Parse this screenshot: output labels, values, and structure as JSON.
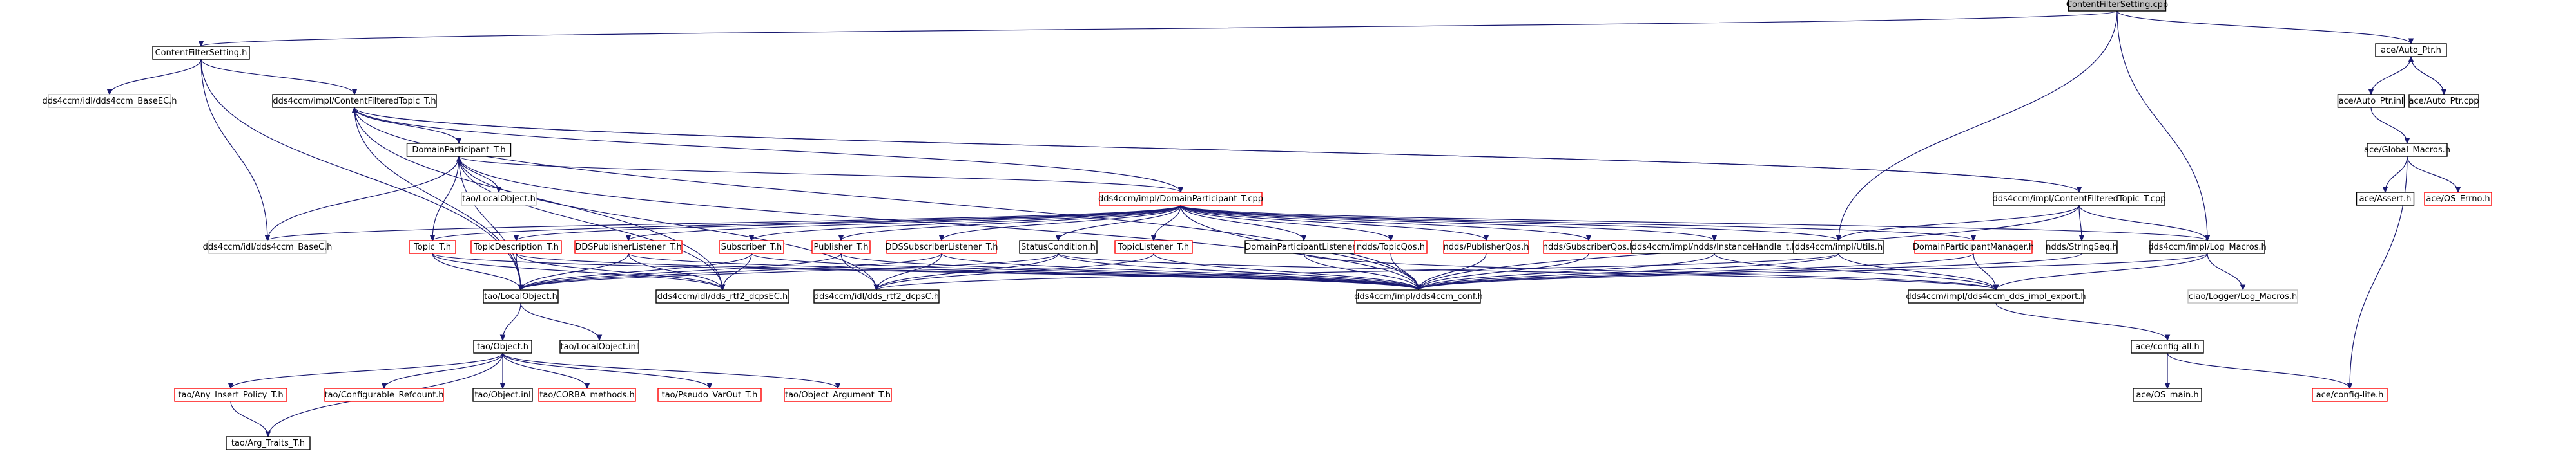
{
  "colors": {
    "edge": "#191970",
    "text": "#000000",
    "border_default": "#000000",
    "border_external": "#bfbfbf",
    "border_incomplete": "#ff0000",
    "root_fill": "#bfbfbf",
    "fill": "#ffffff"
  },
  "nodes": [
    {
      "id": "root",
      "label": "ContentFilterSetting.cpp",
      "kind": "root"
    },
    {
      "id": "cfs_h",
      "label": "ContentFilterSetting.h",
      "kind": "normal"
    },
    {
      "id": "autoptr_h",
      "label": "ace/Auto_Ptr.h",
      "kind": "normal"
    },
    {
      "id": "baseec_h",
      "label": "dds4ccm/idl/dds4ccm_BaseEC.h",
      "kind": "external"
    },
    {
      "id": "cft_h",
      "label": "dds4ccm/impl/ContentFilteredTopic_T.h",
      "kind": "normal"
    },
    {
      "id": "autoptr_inl",
      "label": "ace/Auto_Ptr.inl",
      "kind": "normal"
    },
    {
      "id": "autoptr_cpp",
      "label": "ace/Auto_Ptr.cpp",
      "kind": "normal"
    },
    {
      "id": "dp_h",
      "label": "DomainParticipant_T.h",
      "kind": "normal"
    },
    {
      "id": "global_macros",
      "label": "ace/Global_Macros.h",
      "kind": "normal"
    },
    {
      "id": "localobject_h_ext",
      "label": "tao/LocalObject.h",
      "kind": "external"
    },
    {
      "id": "dp_cpp",
      "label": "dds4ccm/impl/DomainParticipant_T.cpp",
      "kind": "incomplete"
    },
    {
      "id": "cft_cpp",
      "label": "dds4ccm/impl/ContentFilteredTopic_T.cpp",
      "kind": "normal"
    },
    {
      "id": "assert_h",
      "label": "ace/Assert.h",
      "kind": "normal"
    },
    {
      "id": "os_errno",
      "label": "ace/OS_Errno.h",
      "kind": "incomplete"
    },
    {
      "id": "baseC_h",
      "label": "dds4ccm/idl/dds4ccm_BaseC.h",
      "kind": "external"
    },
    {
      "id": "topic_t",
      "label": "Topic_T.h",
      "kind": "incomplete"
    },
    {
      "id": "topicdesc_t",
      "label": "TopicDescription_T.h",
      "kind": "incomplete"
    },
    {
      "id": "ddspublistener",
      "label": "DDSPublisherListener_T.h",
      "kind": "incomplete"
    },
    {
      "id": "subscriber_t",
      "label": "Subscriber_T.h",
      "kind": "incomplete"
    },
    {
      "id": "publisher_t",
      "label": "Publisher_T.h",
      "kind": "incomplete"
    },
    {
      "id": "ddssublistener",
      "label": "DDSSubscriberListener_T.h",
      "kind": "incomplete"
    },
    {
      "id": "statuscond",
      "label": "StatusCondition.h",
      "kind": "normal"
    },
    {
      "id": "topiclistener",
      "label": "TopicListener_T.h",
      "kind": "incomplete"
    },
    {
      "id": "dplistener",
      "label": "DomainParticipantListener.h",
      "kind": "normal"
    },
    {
      "id": "topicqos",
      "label": "ndds/TopicQos.h",
      "kind": "incomplete"
    },
    {
      "id": "pubqos",
      "label": "ndds/PublisherQos.h",
      "kind": "incomplete"
    },
    {
      "id": "subqos",
      "label": "ndds/SubscriberQos.h",
      "kind": "incomplete"
    },
    {
      "id": "instancehandle",
      "label": "dds4ccm/impl/ndds/InstanceHandle_t.h",
      "kind": "normal"
    },
    {
      "id": "utils_h",
      "label": "dds4ccm/impl/Utils.h",
      "kind": "normal"
    },
    {
      "id": "dpmanager",
      "label": "DomainParticipantManager.h",
      "kind": "incomplete"
    },
    {
      "id": "stringseq",
      "label": "ndds/StringSeq.h",
      "kind": "normal"
    },
    {
      "id": "logmacros",
      "label": "dds4ccm/impl/Log_Macros.h",
      "kind": "normal"
    },
    {
      "id": "localobject_h",
      "label": "tao/LocalObject.h",
      "kind": "normal"
    },
    {
      "id": "dcpsec_h",
      "label": "dds4ccm/idl/dds_rtf2_dcpsEC.h",
      "kind": "normal"
    },
    {
      "id": "dcpsc_h",
      "label": "dds4ccm/idl/dds_rtf2_dcpsC.h",
      "kind": "normal"
    },
    {
      "id": "conf_h",
      "label": "dds4ccm/impl/dds4ccm_conf.h",
      "kind": "normal"
    },
    {
      "id": "impl_export",
      "label": "dds4ccm/impl/dds4ccm_dds_impl_export.h",
      "kind": "normal"
    },
    {
      "id": "ciao_logger",
      "label": "ciao/Logger/Log_Macros.h",
      "kind": "external"
    },
    {
      "id": "object_h",
      "label": "tao/Object.h",
      "kind": "normal"
    },
    {
      "id": "localobject_inl",
      "label": "tao/LocalObject.inl",
      "kind": "normal"
    },
    {
      "id": "config_all",
      "label": "ace/config-all.h",
      "kind": "normal"
    },
    {
      "id": "any_insert",
      "label": "tao/Any_Insert_Policy_T.h",
      "kind": "incomplete"
    },
    {
      "id": "configurable",
      "label": "tao/Configurable_Refcount.h",
      "kind": "incomplete"
    },
    {
      "id": "object_inl",
      "label": "tao/Object.inl",
      "kind": "normal"
    },
    {
      "id": "corba_methods",
      "label": "tao/CORBA_methods.h",
      "kind": "incomplete"
    },
    {
      "id": "pseudo_varout",
      "label": "tao/Pseudo_VarOut_T.h",
      "kind": "incomplete"
    },
    {
      "id": "object_argument",
      "label": "tao/Object_Argument_T.h",
      "kind": "incomplete"
    },
    {
      "id": "os_main",
      "label": "ace/OS_main.h",
      "kind": "normal"
    },
    {
      "id": "config_lite",
      "label": "ace/config-lite.h",
      "kind": "incomplete"
    },
    {
      "id": "arg_traits",
      "label": "tao/Arg_Traits_T.h",
      "kind": "normal"
    }
  ],
  "edges": [
    [
      "root",
      "cfs_h"
    ],
    [
      "root",
      "autoptr_h"
    ],
    [
      "root",
      "utils_h"
    ],
    [
      "root",
      "logmacros"
    ],
    [
      "cfs_h",
      "baseec_h"
    ],
    [
      "cfs_h",
      "cft_h"
    ],
    [
      "cfs_h",
      "baseC_h"
    ],
    [
      "cfs_h",
      "localobject_h"
    ],
    [
      "autoptr_h",
      "autoptr_inl"
    ],
    [
      "autoptr_h",
      "autoptr_cpp"
    ],
    [
      "autoptr_cpp",
      "autoptr_h"
    ],
    [
      "autoptr_inl",
      "global_macros"
    ],
    [
      "global_macros",
      "assert_h"
    ],
    [
      "global_macros",
      "os_errno"
    ],
    [
      "global_macros",
      "config_lite"
    ],
    [
      "cft_h",
      "dp_h"
    ],
    [
      "cft_h",
      "cft_cpp"
    ],
    [
      "cft_cpp",
      "cft_h"
    ],
    [
      "cft_h",
      "localobject_h"
    ],
    [
      "cft_h",
      "dcpsec_h"
    ],
    [
      "cft_h",
      "conf_h"
    ],
    [
      "dp_h",
      "localobject_h_ext"
    ],
    [
      "dp_h",
      "dp_cpp"
    ],
    [
      "dp_h",
      "baseC_h"
    ],
    [
      "dp_h",
      "localobject_h"
    ],
    [
      "dp_h",
      "dcpsec_h"
    ],
    [
      "dp_h",
      "dcpsc_h"
    ],
    [
      "dp_h",
      "conf_h"
    ],
    [
      "dp_cpp",
      "cft_h"
    ],
    [
      "dp_cpp",
      "baseC_h"
    ],
    [
      "dp_cpp",
      "topic_t"
    ],
    [
      "dp_cpp",
      "topicdesc_t"
    ],
    [
      "dp_cpp",
      "ddspublistener"
    ],
    [
      "dp_cpp",
      "subscriber_t"
    ],
    [
      "dp_cpp",
      "publisher_t"
    ],
    [
      "dp_cpp",
      "ddssublistener"
    ],
    [
      "dp_cpp",
      "statuscond"
    ],
    [
      "dp_cpp",
      "topiclistener"
    ],
    [
      "dp_cpp",
      "dplistener"
    ],
    [
      "dp_cpp",
      "topicqos"
    ],
    [
      "dp_cpp",
      "pubqos"
    ],
    [
      "dp_cpp",
      "subqos"
    ],
    [
      "dp_cpp",
      "instancehandle"
    ],
    [
      "dp_cpp",
      "utils_h"
    ],
    [
      "dp_cpp",
      "dpmanager"
    ],
    [
      "dp_cpp",
      "logmacros"
    ],
    [
      "dp_cpp",
      "conf_h"
    ],
    [
      "topic_t",
      "dp_h"
    ],
    [
      "cft_cpp",
      "stringseq"
    ],
    [
      "cft_cpp",
      "logmacros"
    ],
    [
      "cft_cpp",
      "utils_h"
    ],
    [
      "cft_cpp",
      "conf_h"
    ],
    [
      "topic_t",
      "localobject_h"
    ],
    [
      "topicdesc_t",
      "localobject_h"
    ],
    [
      "ddspublistener",
      "localobject_h"
    ],
    [
      "subscriber_t",
      "localobject_h"
    ],
    [
      "publisher_t",
      "localobject_h"
    ],
    [
      "ddssublistener",
      "localobject_h"
    ],
    [
      "statuscond",
      "localobject_h"
    ],
    [
      "topic_t",
      "dcpsec_h"
    ],
    [
      "topicdesc_t",
      "dcpsec_h"
    ],
    [
      "ddspublistener",
      "dcpsec_h"
    ],
    [
      "subscriber_t",
      "dcpsec_h"
    ],
    [
      "publisher_t",
      "dcpsc_h"
    ],
    [
      "ddssublistener",
      "dcpsc_h"
    ],
    [
      "statuscond",
      "dcpsc_h"
    ],
    [
      "topiclistener",
      "dcpsc_h"
    ],
    [
      "topic_t",
      "conf_h"
    ],
    [
      "topicdesc_t",
      "conf_h"
    ],
    [
      "ddspublistener",
      "conf_h"
    ],
    [
      "subscriber_t",
      "conf_h"
    ],
    [
      "publisher_t",
      "conf_h"
    ],
    [
      "ddssublistener",
      "conf_h"
    ],
    [
      "statuscond",
      "conf_h"
    ],
    [
      "topiclistener",
      "conf_h"
    ],
    [
      "dplistener",
      "conf_h"
    ],
    [
      "topicqos",
      "conf_h"
    ],
    [
      "pubqos",
      "conf_h"
    ],
    [
      "subqos",
      "conf_h"
    ],
    [
      "instancehandle",
      "conf_h"
    ],
    [
      "utils_h",
      "conf_h"
    ],
    [
      "utils_h",
      "impl_export"
    ],
    [
      "utils_h",
      "dcpsc_h"
    ],
    [
      "dpmanager",
      "conf_h"
    ],
    [
      "dpmanager",
      "impl_export"
    ],
    [
      "dplistener",
      "impl_export"
    ],
    [
      "statuscond",
      "impl_export"
    ],
    [
      "instancehandle",
      "impl_export"
    ],
    [
      "logmacros",
      "impl_export"
    ],
    [
      "logmacros",
      "ciao_logger"
    ],
    [
      "logmacros",
      "conf_h"
    ],
    [
      "stringseq",
      "conf_h"
    ],
    [
      "impl_export",
      "config_all"
    ],
    [
      "config_all",
      "os_main"
    ],
    [
      "config_all",
      "config_lite"
    ],
    [
      "localobject_h",
      "object_h"
    ],
    [
      "localobject_h",
      "localobject_inl"
    ],
    [
      "object_h",
      "any_insert"
    ],
    [
      "object_h",
      "configurable"
    ],
    [
      "object_h",
      "object_inl"
    ],
    [
      "object_h",
      "corba_methods"
    ],
    [
      "object_h",
      "pseudo_varout"
    ],
    [
      "object_h",
      "object_argument"
    ],
    [
      "object_h",
      "arg_traits"
    ],
    [
      "any_insert",
      "arg_traits"
    ]
  ]
}
